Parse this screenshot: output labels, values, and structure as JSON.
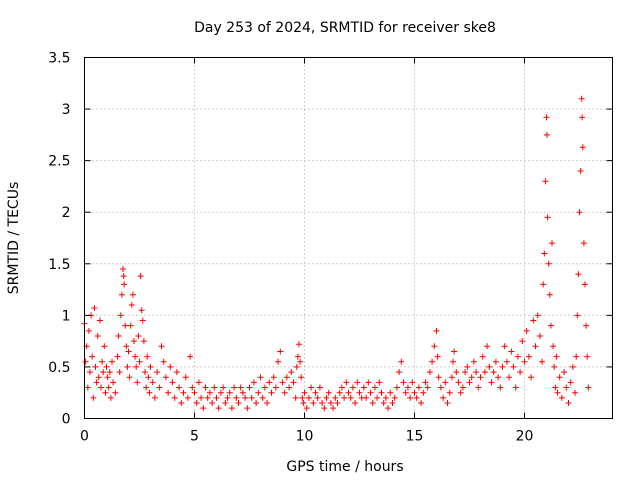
{
  "chart_data": {
    "type": "scatter",
    "title": "Day 253 of 2024, SRMTID for receiver ske8",
    "xlabel": "GPS time / hours",
    "ylabel": "SRMTID / TECUs",
    "xlim": [
      0,
      24
    ],
    "ylim": [
      0,
      3.5
    ],
    "xticks": [
      0,
      5,
      10,
      15,
      20
    ],
    "yticks": [
      0,
      0.5,
      1,
      1.5,
      2,
      2.5,
      3,
      3.5
    ],
    "ytick_labels": [
      "0",
      "0.5",
      "1",
      "1.5",
      "2",
      "2.5",
      "3",
      "3.5"
    ],
    "grid": true,
    "marker": "+",
    "color": "#ff0000",
    "series": [
      {
        "name": "SRMTID",
        "points": [
          [
            0.0,
            0.92
          ],
          [
            0.05,
            0.55
          ],
          [
            0.1,
            0.7
          ],
          [
            0.15,
            0.3
          ],
          [
            0.2,
            0.85
          ],
          [
            0.25,
            0.45
          ],
          [
            0.3,
            1.0
          ],
          [
            0.35,
            0.6
          ],
          [
            0.4,
            0.2
          ],
          [
            0.45,
            1.07
          ],
          [
            0.5,
            0.5
          ],
          [
            0.55,
            0.35
          ],
          [
            0.6,
            0.8
          ],
          [
            0.65,
            0.4
          ],
          [
            0.7,
            0.95
          ],
          [
            0.75,
            0.3
          ],
          [
            0.8,
            0.55
          ],
          [
            0.85,
            0.45
          ],
          [
            0.9,
            0.7
          ],
          [
            0.95,
            0.25
          ],
          [
            1.0,
            0.5
          ],
          [
            1.05,
            0.4
          ],
          [
            1.1,
            0.3
          ],
          [
            1.15,
            0.45
          ],
          [
            1.2,
            0.2
          ],
          [
            1.25,
            0.55
          ],
          [
            1.3,
            0.35
          ],
          [
            1.4,
            0.25
          ],
          [
            1.5,
            0.6
          ],
          [
            1.55,
            0.8
          ],
          [
            1.6,
            0.45
          ],
          [
            1.65,
            1.0
          ],
          [
            1.7,
            1.2
          ],
          [
            1.75,
            1.45
          ],
          [
            1.78,
            1.38
          ],
          [
            1.8,
            1.3
          ],
          [
            1.85,
            0.9
          ],
          [
            1.9,
            0.7
          ],
          [
            1.95,
            0.5
          ],
          [
            2.0,
            0.65
          ],
          [
            2.05,
            0.4
          ],
          [
            2.1,
            0.9
          ],
          [
            2.15,
            1.1
          ],
          [
            2.2,
            1.2
          ],
          [
            2.25,
            0.75
          ],
          [
            2.3,
            0.6
          ],
          [
            2.35,
            0.5
          ],
          [
            2.4,
            0.35
          ],
          [
            2.45,
            0.8
          ],
          [
            2.5,
            0.55
          ],
          [
            2.55,
            1.38
          ],
          [
            2.6,
            1.05
          ],
          [
            2.65,
            0.95
          ],
          [
            2.7,
            0.75
          ],
          [
            2.75,
            0.45
          ],
          [
            2.8,
            0.3
          ],
          [
            2.85,
            0.6
          ],
          [
            2.9,
            0.4
          ],
          [
            2.95,
            0.25
          ],
          [
            3.0,
            0.5
          ],
          [
            3.1,
            0.35
          ],
          [
            3.2,
            0.2
          ],
          [
            3.3,
            0.45
          ],
          [
            3.4,
            0.3
          ],
          [
            3.5,
            0.7
          ],
          [
            3.6,
            0.55
          ],
          [
            3.7,
            0.4
          ],
          [
            3.8,
            0.25
          ],
          [
            3.9,
            0.5
          ],
          [
            4.0,
            0.35
          ],
          [
            4.1,
            0.2
          ],
          [
            4.2,
            0.45
          ],
          [
            4.3,
            0.3
          ],
          [
            4.4,
            0.15
          ],
          [
            4.5,
            0.25
          ],
          [
            4.6,
            0.4
          ],
          [
            4.7,
            0.2
          ],
          [
            4.8,
            0.6
          ],
          [
            4.9,
            0.3
          ],
          [
            5.0,
            0.25
          ],
          [
            5.1,
            0.15
          ],
          [
            5.2,
            0.35
          ],
          [
            5.3,
            0.2
          ],
          [
            5.4,
            0.1
          ],
          [
            5.5,
            0.3
          ],
          [
            5.6,
            0.2
          ],
          [
            5.7,
            0.25
          ],
          [
            5.8,
            0.15
          ],
          [
            5.9,
            0.3
          ],
          [
            6.0,
            0.2
          ],
          [
            6.1,
            0.1
          ],
          [
            6.2,
            0.25
          ],
          [
            6.3,
            0.3
          ],
          [
            6.4,
            0.15
          ],
          [
            6.5,
            0.2
          ],
          [
            6.6,
            0.25
          ],
          [
            6.7,
            0.1
          ],
          [
            6.8,
            0.3
          ],
          [
            6.9,
            0.2
          ],
          [
            7.0,
            0.15
          ],
          [
            7.1,
            0.3
          ],
          [
            7.2,
            0.25
          ],
          [
            7.3,
            0.2
          ],
          [
            7.4,
            0.1
          ],
          [
            7.5,
            0.3
          ],
          [
            7.6,
            0.2
          ],
          [
            7.7,
            0.35
          ],
          [
            7.8,
            0.15
          ],
          [
            7.9,
            0.25
          ],
          [
            8.0,
            0.4
          ],
          [
            8.1,
            0.2
          ],
          [
            8.2,
            0.3
          ],
          [
            8.3,
            0.15
          ],
          [
            8.4,
            0.35
          ],
          [
            8.5,
            0.25
          ],
          [
            8.6,
            0.4
          ],
          [
            8.7,
            0.3
          ],
          [
            8.8,
            0.55
          ],
          [
            8.9,
            0.65
          ],
          [
            9.0,
            0.35
          ],
          [
            9.1,
            0.25
          ],
          [
            9.2,
            0.4
          ],
          [
            9.3,
            0.3
          ],
          [
            9.4,
            0.45
          ],
          [
            9.5,
            0.35
          ],
          [
            9.6,
            0.2
          ],
          [
            9.65,
            0.5
          ],
          [
            9.7,
            0.6
          ],
          [
            9.75,
            0.72
          ],
          [
            9.8,
            0.55
          ],
          [
            9.85,
            0.4
          ],
          [
            9.9,
            0.2
          ],
          [
            9.95,
            0.15
          ],
          [
            10.0,
            0.25
          ],
          [
            10.1,
            0.1
          ],
          [
            10.2,
            0.2
          ],
          [
            10.3,
            0.3
          ],
          [
            10.4,
            0.15
          ],
          [
            10.5,
            0.25
          ],
          [
            10.6,
            0.2
          ],
          [
            10.7,
            0.3
          ],
          [
            10.8,
            0.15
          ],
          [
            10.9,
            0.1
          ],
          [
            11.0,
            0.2
          ],
          [
            11.1,
            0.25
          ],
          [
            11.2,
            0.15
          ],
          [
            11.3,
            0.1
          ],
          [
            11.4,
            0.2
          ],
          [
            11.5,
            0.15
          ],
          [
            11.6,
            0.25
          ],
          [
            11.7,
            0.3
          ],
          [
            11.8,
            0.2
          ],
          [
            11.9,
            0.35
          ],
          [
            12.0,
            0.25
          ],
          [
            12.1,
            0.2
          ],
          [
            12.2,
            0.3
          ],
          [
            12.3,
            0.15
          ],
          [
            12.4,
            0.35
          ],
          [
            12.5,
            0.25
          ],
          [
            12.6,
            0.2
          ],
          [
            12.7,
            0.3
          ],
          [
            12.8,
            0.2
          ],
          [
            12.9,
            0.35
          ],
          [
            13.0,
            0.25
          ],
          [
            13.1,
            0.15
          ],
          [
            13.2,
            0.3
          ],
          [
            13.3,
            0.2
          ],
          [
            13.4,
            0.35
          ],
          [
            13.5,
            0.25
          ],
          [
            13.6,
            0.15
          ],
          [
            13.7,
            0.2
          ],
          [
            13.8,
            0.1
          ],
          [
            13.9,
            0.25
          ],
          [
            14.0,
            0.15
          ],
          [
            14.1,
            0.2
          ],
          [
            14.2,
            0.3
          ],
          [
            14.3,
            0.45
          ],
          [
            14.4,
            0.55
          ],
          [
            14.5,
            0.35
          ],
          [
            14.6,
            0.25
          ],
          [
            14.7,
            0.3
          ],
          [
            14.8,
            0.2
          ],
          [
            14.9,
            0.35
          ],
          [
            15.0,
            0.25
          ],
          [
            15.1,
            0.2
          ],
          [
            15.2,
            0.3
          ],
          [
            15.3,
            0.15
          ],
          [
            15.4,
            0.25
          ],
          [
            15.5,
            0.35
          ],
          [
            15.6,
            0.3
          ],
          [
            15.7,
            0.45
          ],
          [
            15.8,
            0.55
          ],
          [
            15.9,
            0.7
          ],
          [
            16.0,
            0.85
          ],
          [
            16.05,
            0.6
          ],
          [
            16.1,
            0.4
          ],
          [
            16.2,
            0.3
          ],
          [
            16.3,
            0.2
          ],
          [
            16.4,
            0.35
          ],
          [
            16.5,
            0.15
          ],
          [
            16.6,
            0.25
          ],
          [
            16.7,
            0.4
          ],
          [
            16.75,
            0.55
          ],
          [
            16.8,
            0.65
          ],
          [
            16.9,
            0.45
          ],
          [
            17.0,
            0.35
          ],
          [
            17.1,
            0.25
          ],
          [
            17.2,
            0.3
          ],
          [
            17.3,
            0.45
          ],
          [
            17.4,
            0.5
          ],
          [
            17.5,
            0.35
          ],
          [
            17.6,
            0.4
          ],
          [
            17.7,
            0.55
          ],
          [
            17.8,
            0.45
          ],
          [
            17.9,
            0.3
          ],
          [
            18.0,
            0.4
          ],
          [
            18.1,
            0.6
          ],
          [
            18.2,
            0.45
          ],
          [
            18.3,
            0.7
          ],
          [
            18.4,
            0.5
          ],
          [
            18.5,
            0.35
          ],
          [
            18.6,
            0.45
          ],
          [
            18.7,
            0.55
          ],
          [
            18.8,
            0.4
          ],
          [
            18.9,
            0.3
          ],
          [
            19.0,
            0.5
          ],
          [
            19.1,
            0.7
          ],
          [
            19.2,
            0.55
          ],
          [
            19.3,
            0.4
          ],
          [
            19.4,
            0.65
          ],
          [
            19.5,
            0.5
          ],
          [
            19.6,
            0.3
          ],
          [
            19.7,
            0.6
          ],
          [
            19.8,
            0.45
          ],
          [
            19.9,
            0.75
          ],
          [
            20.0,
            0.55
          ],
          [
            20.1,
            0.85
          ],
          [
            20.2,
            0.6
          ],
          [
            20.3,
            0.4
          ],
          [
            20.4,
            0.95
          ],
          [
            20.5,
            0.7
          ],
          [
            20.6,
            1.0
          ],
          [
            20.7,
            0.8
          ],
          [
            20.8,
            0.55
          ],
          [
            20.85,
            1.3
          ],
          [
            20.9,
            1.6
          ],
          [
            20.95,
            2.3
          ],
          [
            21.0,
            2.92
          ],
          [
            21.02,
            2.75
          ],
          [
            21.05,
            1.95
          ],
          [
            21.1,
            1.5
          ],
          [
            21.15,
            1.2
          ],
          [
            21.2,
            0.9
          ],
          [
            21.25,
            1.7
          ],
          [
            21.3,
            0.7
          ],
          [
            21.35,
            0.5
          ],
          [
            21.4,
            0.3
          ],
          [
            21.45,
            0.6
          ],
          [
            21.5,
            0.25
          ],
          [
            21.6,
            0.4
          ],
          [
            21.7,
            0.2
          ],
          [
            21.8,
            0.45
          ],
          [
            21.9,
            0.3
          ],
          [
            22.0,
            0.15
          ],
          [
            22.1,
            0.35
          ],
          [
            22.2,
            0.5
          ],
          [
            22.3,
            0.25
          ],
          [
            22.35,
            0.6
          ],
          [
            22.4,
            1.0
          ],
          [
            22.45,
            1.4
          ],
          [
            22.5,
            2.0
          ],
          [
            22.55,
            2.4
          ],
          [
            22.6,
            3.1
          ],
          [
            22.62,
            2.92
          ],
          [
            22.65,
            2.63
          ],
          [
            22.7,
            1.7
          ],
          [
            22.75,
            1.3
          ],
          [
            22.8,
            0.9
          ],
          [
            22.85,
            0.6
          ],
          [
            22.9,
            0.3
          ]
        ]
      }
    ]
  }
}
